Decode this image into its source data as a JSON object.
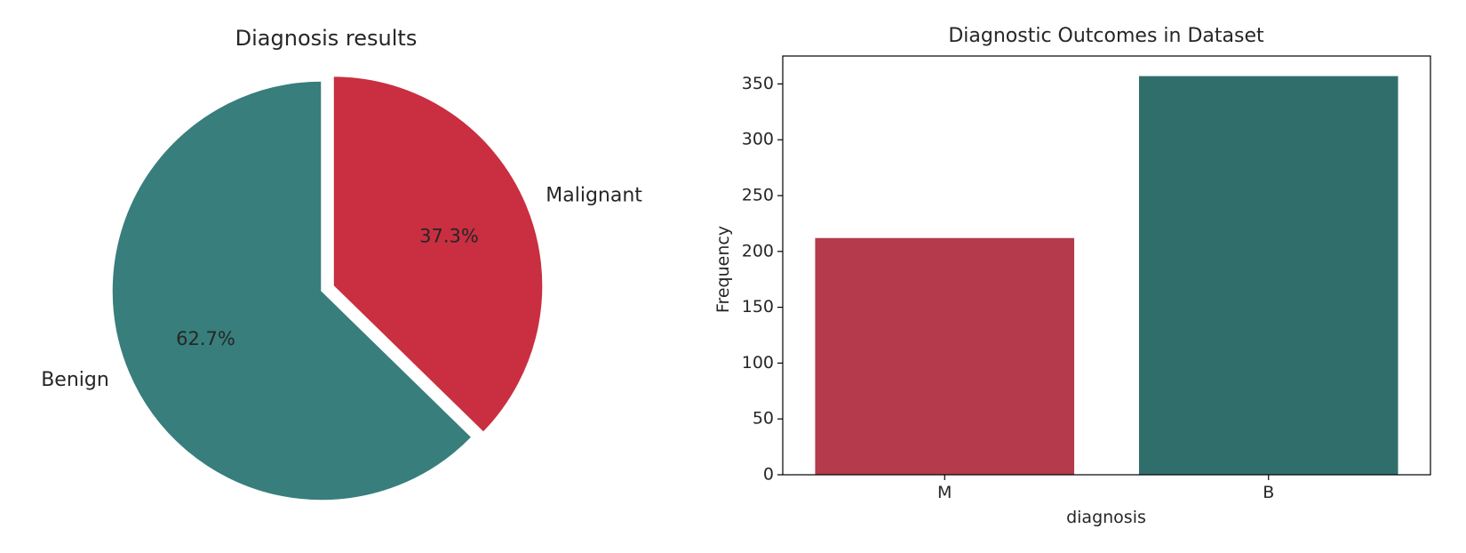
{
  "chart_data": [
    {
      "type": "pie",
      "title": "Diagnosis results",
      "labels": [
        "Malignant",
        "Benign"
      ],
      "values": [
        37.3,
        62.7
      ],
      "autopct_labels": [
        "37.3%",
        "62.7%"
      ],
      "colors": [
        "#c92f41",
        "#377e7c"
      ],
      "explode": [
        0.06,
        0
      ],
      "start_angle_deg": 90
    },
    {
      "type": "bar",
      "title": "Diagnostic Outcomes in Dataset",
      "categories": [
        "M",
        "B"
      ],
      "values": [
        212,
        357
      ],
      "colors": [
        "#b43a4c",
        "#306e6c"
      ],
      "xlabel": "diagnosis",
      "ylabel": "Frequency",
      "ylim": [
        0,
        375
      ],
      "yticks": [
        0,
        50,
        100,
        150,
        200,
        250,
        300,
        350
      ],
      "grid": false
    }
  ]
}
